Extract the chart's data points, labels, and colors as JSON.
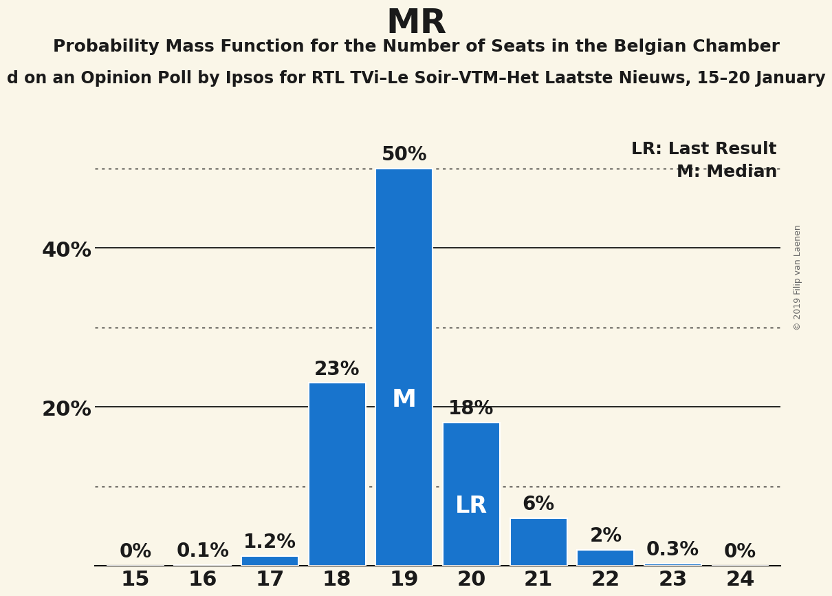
{
  "title": "MR",
  "subtitle": "Probability Mass Function for the Number of Seats in the Belgian Chamber",
  "sub_subtitle": "d on an Opinion Poll by Ipsos for RTL TVi–Le Soir–VTM–Het Laatste Nieuws, 15–20 January",
  "watermark": "© 2019 Filip van Laenen",
  "categories": [
    15,
    16,
    17,
    18,
    19,
    20,
    21,
    22,
    23,
    24
  ],
  "values": [
    0.0,
    0.1,
    1.2,
    23.0,
    50.0,
    18.0,
    6.0,
    2.0,
    0.3,
    0.0
  ],
  "bar_color": "#1874cd",
  "bar_edge_color": "#ffffff",
  "background_color": "#faf6e8",
  "median_bar": 19,
  "lr_bar": 20,
  "label_inside_color": "#ffffff",
  "label_outside_color": "#1a1a1a",
  "ylim": [
    0,
    56
  ],
  "yticks": [
    0,
    10,
    20,
    30,
    40,
    50
  ],
  "solid_gridlines": [
    20,
    40
  ],
  "dotted_gridlines": [
    10,
    30,
    50
  ],
  "legend_lr": "LR: Last Result",
  "legend_m": "M: Median",
  "value_labels": [
    "0%",
    "0.1%",
    "1.2%",
    "23%",
    "50%",
    "18%",
    "6%",
    "2%",
    "0.3%",
    "0%"
  ],
  "title_fontsize": 36,
  "subtitle_fontsize": 18,
  "sub_subtitle_fontsize": 17,
  "axis_tick_fontsize": 22,
  "bar_label_fontsize": 20,
  "legend_fontsize": 18,
  "watermark_fontsize": 9
}
